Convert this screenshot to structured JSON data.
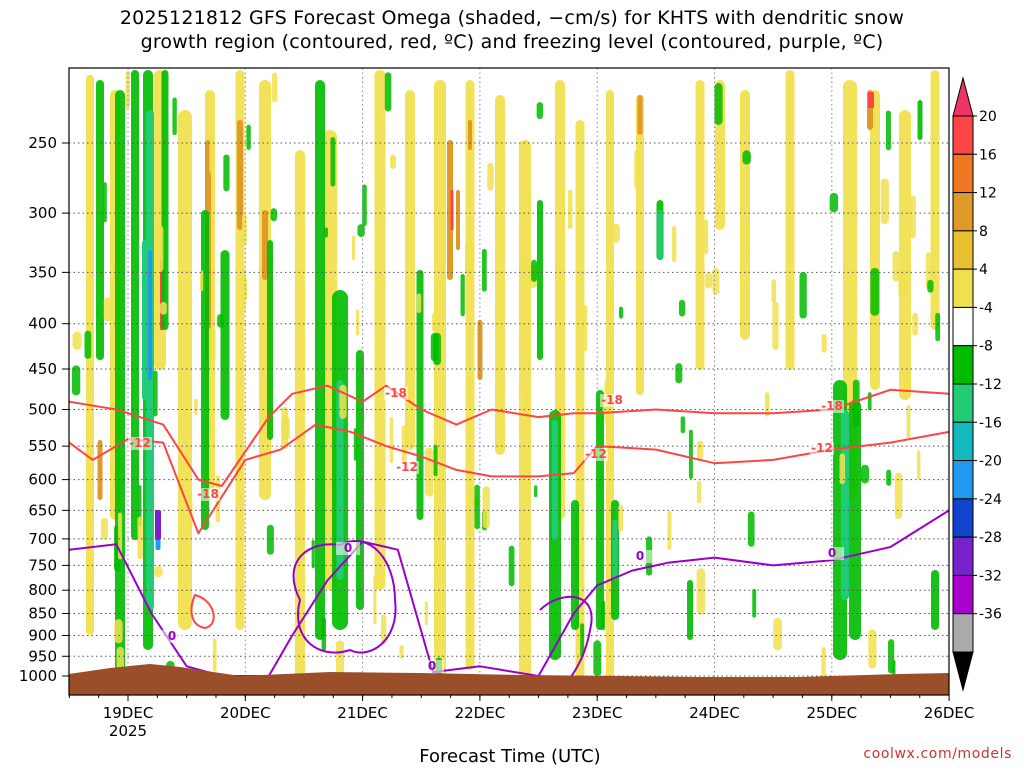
{
  "chart_data": {
    "type": "heatmap",
    "title_line1": "2025121812 GFS Forecast Omega (shaded, −cm/s) for KHTS with dendritic snow",
    "title_line2": "growth region (contoured, red, ºC) and freezing level (contoured, purple, ºC)",
    "xlabel": "Forecast Time (UTC)",
    "ylabel": "",
    "credit": "coolwx.com/models",
    "grid": true,
    "x_ticks": [
      {
        "label": "19DEC",
        "sub": "2025",
        "day": 19
      },
      {
        "label": "20DEC",
        "sub": "",
        "day": 20
      },
      {
        "label": "21DEC",
        "sub": "",
        "day": 21
      },
      {
        "label": "22DEC",
        "sub": "",
        "day": 22
      },
      {
        "label": "23DEC",
        "sub": "",
        "day": 23
      },
      {
        "label": "24DEC",
        "sub": "",
        "day": 24
      },
      {
        "label": "25DEC",
        "sub": "",
        "day": 25
      },
      {
        "label": "26DEC",
        "sub": "",
        "day": 26
      }
    ],
    "xlim_days": [
      18.5,
      26.0
    ],
    "y_ticks": [
      250,
      300,
      350,
      400,
      450,
      500,
      550,
      600,
      650,
      700,
      750,
      800,
      850,
      900,
      950,
      1000
    ],
    "ylim_hpa": [
      200,
      1020
    ],
    "colorbar": {
      "labels": [
        "20",
        "16",
        "12",
        "8",
        "4",
        "-4",
        "-8",
        "-12",
        "-16",
        "-20",
        "-24",
        "-28",
        "-32",
        "-36"
      ],
      "colors": [
        "#ee3366",
        "#ff4444",
        "#ee7722",
        "#e09a2a",
        "#e8c030",
        "#f0e050",
        "#ffffff",
        "#00bb00",
        "#22cc77",
        "#11bbbb",
        "#2299ee",
        "#1144cc",
        "#7722cc",
        "#aa00cc",
        "#aaaaaa",
        "#000000"
      ]
    },
    "contours_red_label_values": [
      "-18",
      "-12"
    ],
    "contour_freezing_label": "0",
    "terrain_color": "#9a4f2a",
    "series": [
      {
        "line": "-18 C",
        "x": [
          18.5,
          18.9,
          19.3,
          19.6,
          19.8,
          20.2,
          20.4,
          20.7,
          21.0,
          21.2,
          21.5,
          21.8,
          22.1,
          22.5,
          22.8,
          23.0,
          23.5,
          24.0,
          24.5,
          25.0,
          25.5,
          26.0
        ],
        "y": [
          490,
          500,
          520,
          600,
          610,
          510,
          480,
          470,
          490,
          470,
          500,
          520,
          500,
          510,
          505,
          505,
          500,
          505,
          505,
          500,
          475,
          480
        ]
      },
      {
        "line": "-12 C",
        "x": [
          18.5,
          18.7,
          19.0,
          19.3,
          19.6,
          20.0,
          20.3,
          20.6,
          20.9,
          21.2,
          21.5,
          21.8,
          22.1,
          22.5,
          22.8,
          23.0,
          23.5,
          24.0,
          24.5,
          25.0,
          25.5,
          26.0
        ],
        "y": [
          545,
          570,
          540,
          545,
          690,
          570,
          555,
          520,
          530,
          550,
          565,
          585,
          595,
          595,
          590,
          550,
          555,
          575,
          570,
          555,
          545,
          530
        ]
      },
      {
        "line": "0 C",
        "x": [
          18.5,
          18.9,
          19.2,
          19.5,
          19.8,
          20.2,
          20.4,
          20.7,
          21.0,
          21.3,
          21.6,
          22.0,
          22.5,
          22.8,
          23.0,
          23.3,
          23.6,
          24.0,
          24.5,
          25.0,
          25.5,
          26.0
        ],
        "y": [
          720,
          710,
          850,
          975,
          1000,
          1000,
          900,
          780,
          705,
          720,
          990,
          975,
          1000,
          850,
          790,
          760,
          745,
          735,
          750,
          740,
          715,
          650
        ]
      }
    ]
  }
}
